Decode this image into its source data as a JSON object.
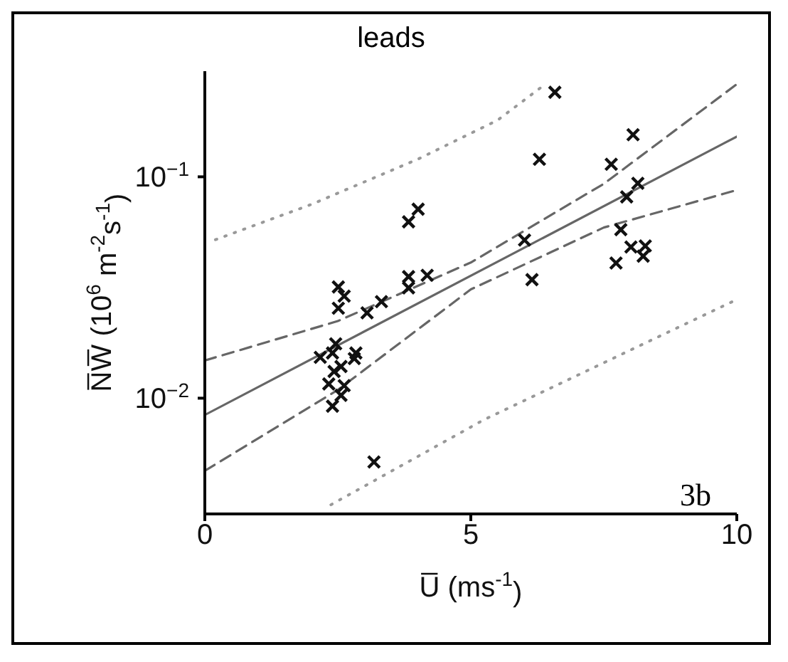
{
  "chart_data": {
    "type": "scatter",
    "title": "leads",
    "xlabel": "U̅ (ms$^{-1}$)",
    "ylabel": "N̅W̅ (10$^{6}$ m$^{-2}$s$^{-1}$)",
    "annotations": [
      "3b"
    ],
    "log": "y",
    "grid": false,
    "legend": false,
    "xlim": [
      0,
      10
    ],
    "xticks": [
      0,
      5,
      10
    ],
    "ylim": [
      0.003,
      0.3
    ],
    "yticks": [
      {
        "value": 0.01,
        "label": "10$^{−2}$"
      },
      {
        "value": 0.1,
        "label": "10$^{−1}$"
      }
    ],
    "series": [
      {
        "marker": "cross",
        "color": "#111111",
        "x": [
          6.58,
          8.05,
          6.29,
          7.64,
          8.14,
          7.93,
          6.01,
          7.82,
          8.01,
          8.28,
          8.24,
          7.73,
          6.15,
          4.01,
          3.83,
          3.83,
          3.83,
          4.18,
          2.51,
          2.62,
          2.51,
          3.32,
          3.05,
          2.17,
          2.4,
          2.46,
          2.56,
          2.33,
          2.62,
          2.56,
          2.4,
          2.84,
          2.81,
          2.43,
          3.18
        ],
        "values": [
          0.241,
          0.155,
          0.12,
          0.114,
          0.0935,
          0.0811,
          0.0518,
          0.0577,
          0.0482,
          0.0487,
          0.0438,
          0.0408,
          0.0343,
          0.0714,
          0.0626,
          0.0354,
          0.0315,
          0.0359,
          0.0318,
          0.0289,
          0.0255,
          0.0273,
          0.0243,
          0.0153,
          0.016,
          0.0176,
          0.0139,
          0.0116,
          0.0114,
          0.0103,
          0.0092,
          0.016,
          0.0151,
          0.0132,
          0.00515
        ]
      },
      {
        "type": "line",
        "marker": "none",
        "line_style": "solid",
        "color": "#666666",
        "x": [
          0,
          10
        ],
        "values": [
          0.0084,
          0.152
        ]
      },
      {
        "type": "line",
        "marker": "none",
        "line_style": "dashed",
        "color": "#666666",
        "x": [
          0,
          2.5,
          5,
          7.5,
          10
        ],
        "values": [
          0.0148,
          0.0223,
          0.041,
          0.093,
          0.262
        ]
      },
      {
        "type": "line",
        "marker": "none",
        "line_style": "dashed",
        "color": "#666666",
        "x": [
          0,
          2.5,
          5,
          7.5,
          10
        ],
        "values": [
          0.0047,
          0.0109,
          0.031,
          0.059,
          0.0871
        ]
      },
      {
        "type": "line",
        "marker": "none",
        "line_style": "dotted",
        "color": "#999999",
        "x": [
          0.2,
          2,
          4,
          5.5,
          6.4
        ],
        "values": [
          0.052,
          0.075,
          0.12,
          0.18,
          0.262
        ]
      },
      {
        "type": "line",
        "marker": "none",
        "line_style": "dotted",
        "color": "#999999",
        "x": [
          2.37,
          5.25,
          10
        ],
        "values": [
          0.0033,
          0.008,
          0.0279
        ]
      }
    ]
  }
}
